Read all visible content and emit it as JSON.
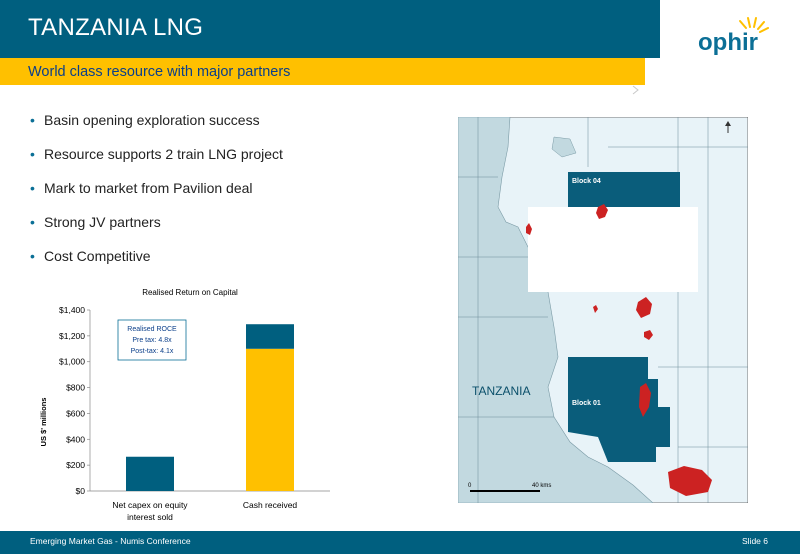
{
  "header": {
    "title": "TANZANIA LNG",
    "logo_text": "ophir"
  },
  "subtitle": "World class resource with major partners",
  "bullets": [
    "Basin opening exploration success",
    "Resource supports 2 train LNG project",
    "Mark to market from Pavilion deal",
    "Strong JV partners",
    "Cost Competitive"
  ],
  "chart_data": {
    "type": "bar",
    "title": "Realised Return on Capital",
    "ylabel": "US $' millions",
    "ylim": [
      0,
      1400
    ],
    "yticks": [
      "$0",
      "$200",
      "$400",
      "$600",
      "$800",
      "$1,000",
      "$1,200",
      "$1,400"
    ],
    "categories": [
      "Net capex on equity interest sold",
      "Cash received"
    ],
    "category_lines": [
      [
        "Net capex on equity",
        "interest sold"
      ],
      [
        "Cash received"
      ]
    ],
    "series": [
      {
        "values": [
          265,
          1100
        ],
        "color_per_bar": [
          "#005f7f",
          "#ffc000"
        ]
      },
      {
        "values": [
          0,
          190
        ],
        "color": "#005f7f"
      }
    ],
    "annotation": [
      "Realised ROCE",
      "Pre tax: 4.8x",
      "Post-tax: 4.1x"
    ],
    "grid": false
  },
  "map": {
    "country_label": "TANZANIA",
    "block_labels": [
      "Block 04",
      "Block 01"
    ],
    "scale_labels": [
      "0",
      "40 kms"
    ],
    "colors": {
      "land": "#c2d9e0",
      "sea": "#e8f3f8",
      "block": "#0a5d7b",
      "discovery": "#cc2222"
    }
  },
  "footer": {
    "text": "Emerging Market Gas - Numis Conference",
    "slide": "Slide 6"
  },
  "colors": {
    "primary": "#005f7f",
    "accent": "#ffc000",
    "subtitle_text": "#0b3f8a"
  }
}
